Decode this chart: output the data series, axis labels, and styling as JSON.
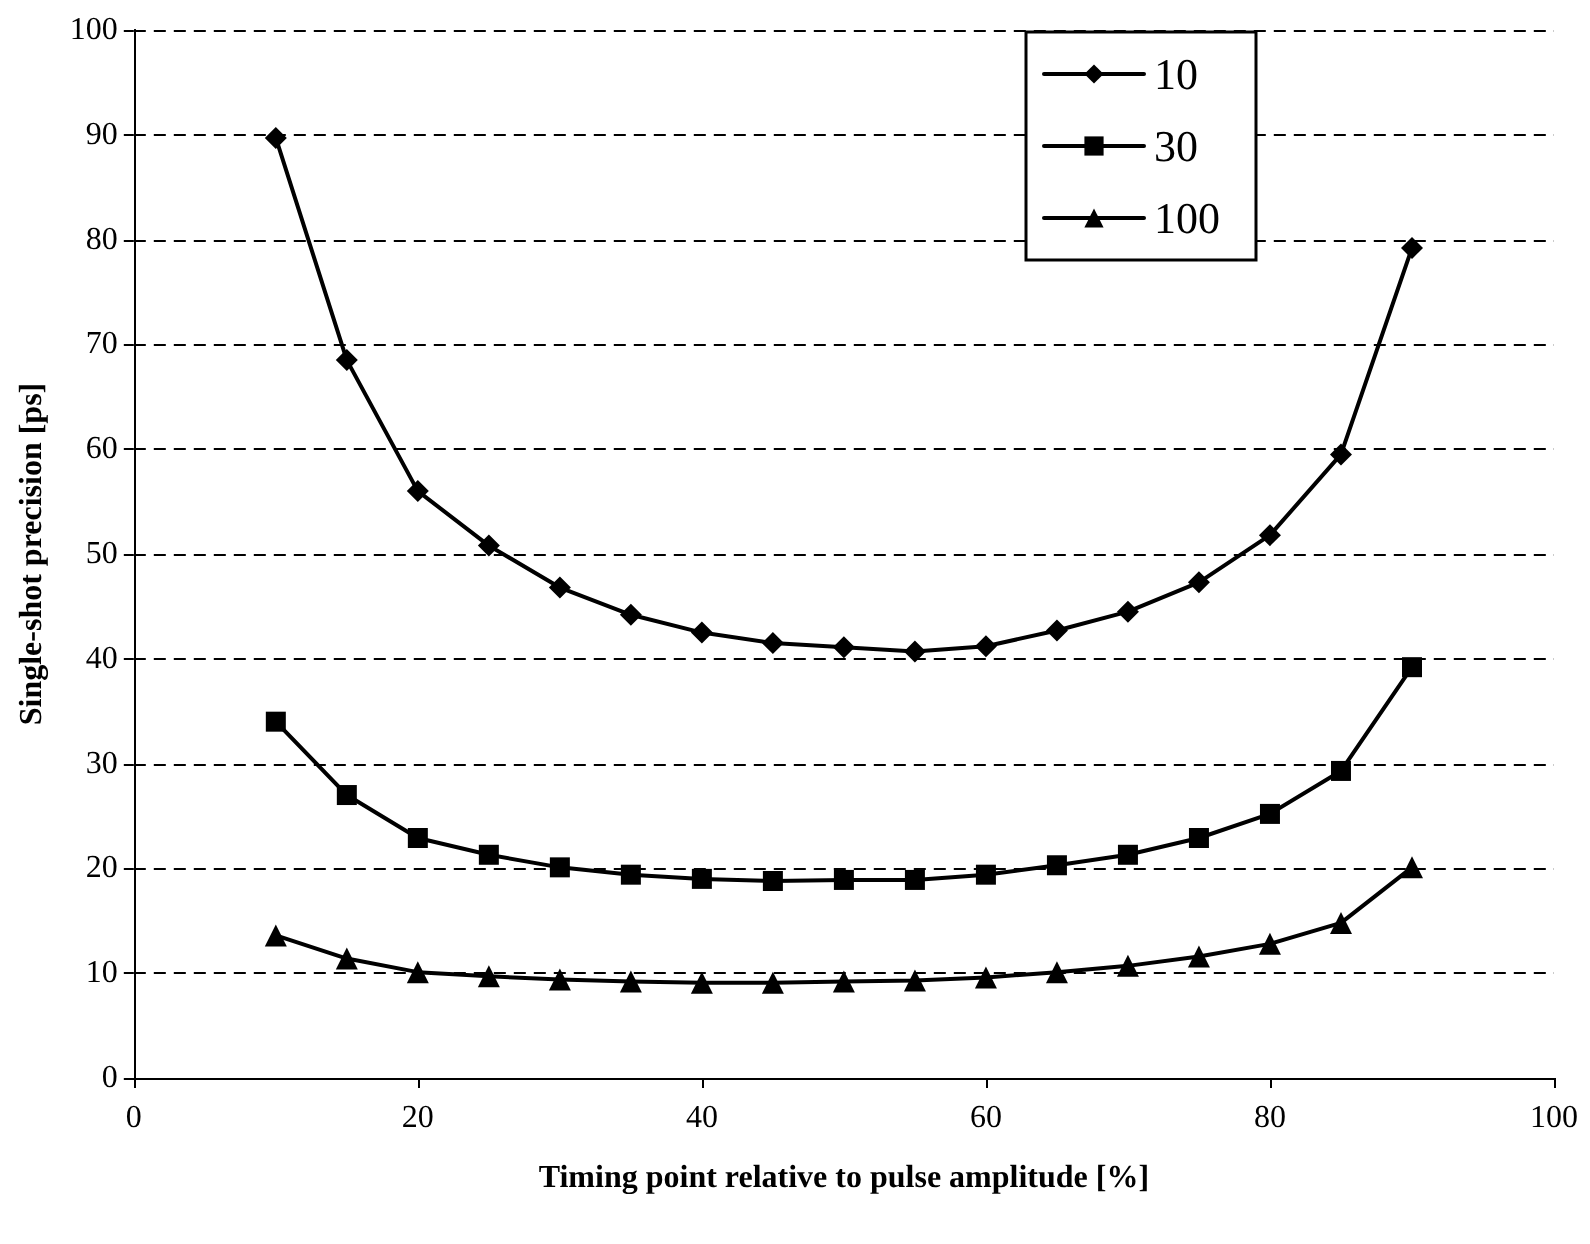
{
  "chart_data": {
    "type": "line",
    "xlabel": "Timing point relative to pulse amplitude [%]",
    "ylabel": "Single-shot precision [ps]",
    "x": [
      10,
      15,
      20,
      25,
      30,
      35,
      40,
      45,
      50,
      55,
      60,
      65,
      70,
      75,
      80,
      85,
      90
    ],
    "series": [
      {
        "name": "10",
        "color": "#000000",
        "marker": "diamond",
        "values": [
          89.7,
          68.5,
          56,
          50.8,
          46.8,
          44.2,
          42.5,
          41.5,
          41.1,
          40.7,
          41.2,
          42.7,
          44.5,
          47.3,
          51.8,
          59.5,
          79.2
        ]
      },
      {
        "name": "30",
        "color": "#000000",
        "marker": "square",
        "values": [
          34,
          27,
          22.9,
          21.3,
          20.1,
          19.4,
          19,
          18.8,
          18.9,
          18.9,
          19.4,
          20.3,
          21.3,
          22.9,
          25.2,
          29.3,
          39.2
        ]
      },
      {
        "name": "100",
        "color": "#000000",
        "marker": "triangle",
        "values": [
          13.6,
          11.4,
          10.1,
          9.7,
          9.4,
          9.2,
          9.1,
          9.1,
          9.2,
          9.3,
          9.6,
          10.1,
          10.7,
          11.6,
          12.8,
          14.8,
          20.1
        ]
      }
    ],
    "xlim": [
      0,
      100
    ],
    "xticks": [
      0,
      20,
      40,
      60,
      80,
      100
    ],
    "ylim": [
      0,
      100
    ],
    "yticks": [
      0,
      10,
      20,
      30,
      40,
      50,
      60,
      70,
      80,
      90,
      100
    ],
    "grid": "y",
    "legend": "top right",
    "line_style": "solid"
  }
}
